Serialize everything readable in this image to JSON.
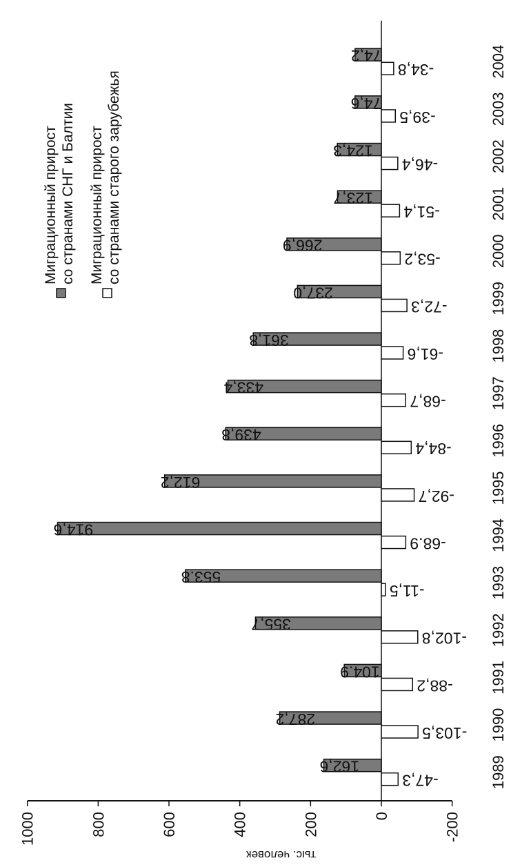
{
  "chart_data": {
    "type": "bar",
    "orientation": "horizontal",
    "categories": [
      "1989",
      "1990",
      "1991",
      "1992",
      "1993",
      "1994",
      "1995",
      "1996",
      "1997",
      "1998",
      "1999",
      "2000",
      "2001",
      "2002",
      "2003",
      "2004"
    ],
    "series": [
      {
        "name": "Миграционный прирост со странами СНГ и Балтии",
        "name_lines": [
          "Миграционный прирост",
          "со странами СНГ и Балтии"
        ],
        "fill": "#7a7a7a",
        "values": [
          162.6,
          287.2,
          104.9,
          355.7,
          553.8,
          914.6,
          612.2,
          439.8,
          433.4,
          361.8,
          237.0,
          266.9,
          123.7,
          124.3,
          74.6,
          74.2
        ],
        "labels": [
          "162,6",
          "287,2",
          "104.9",
          "355,7",
          "553.8",
          "914,6",
          "612,2",
          "439,8",
          "433,4",
          "361,8",
          "237,0",
          "266,9",
          "123,7",
          "124,3",
          "74,6",
          "74,2"
        ]
      },
      {
        "name": "Миграционный прирост со странами старого зарубежья",
        "name_lines": [
          "Миграционный прирост",
          "со странами старого зарубежья"
        ],
        "fill": "#ffffff",
        "values": [
          -47.3,
          -103.5,
          -88.2,
          -102.8,
          -11.5,
          -68.9,
          -92.7,
          -84.4,
          -68.7,
          -61.6,
          -72.3,
          -53.2,
          -51.4,
          -46.4,
          -39.5,
          -34.8
        ],
        "labels": [
          "-47,3",
          "-103,5",
          "-88,2",
          "-102,8",
          "-11,5",
          "-68.9",
          "-92,7",
          "-84,4",
          "-68,7",
          "-61,6",
          "-72,3",
          "-53,2",
          "-51,4",
          "-46,4",
          "-39,5",
          "-34,8"
        ]
      }
    ],
    "axis": {
      "label": "тыс. человек",
      "ticks": [
        "1000",
        "800",
        "600",
        "400",
        "200",
        "0",
        "-200"
      ],
      "tick_values": [
        1000,
        800,
        600,
        400,
        200,
        0,
        -200
      ],
      "range": [
        -200,
        1000
      ]
    },
    "rotation": "chart rotated 90 degrees clockwise; value axis along the bottom, years along the right",
    "legend_position": "top-right"
  }
}
